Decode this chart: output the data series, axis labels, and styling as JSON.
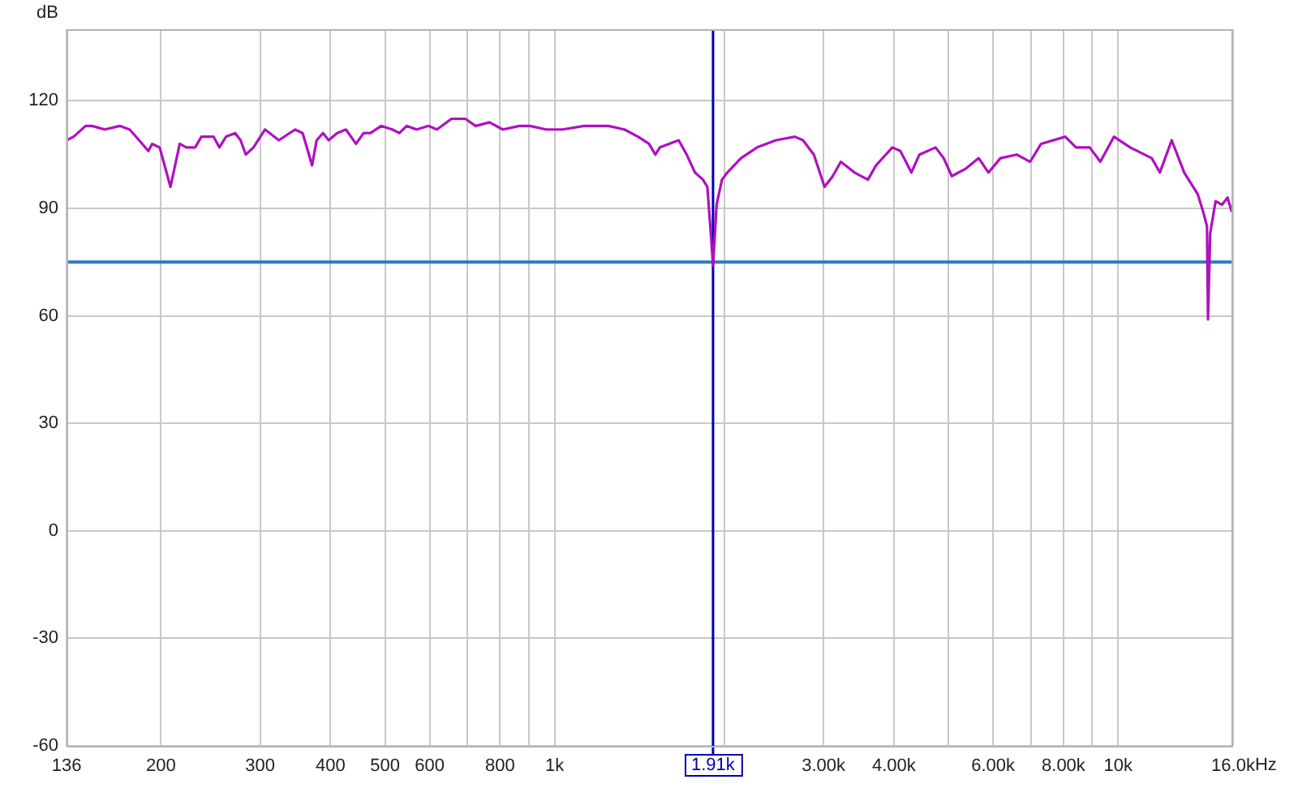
{
  "chart_data": {
    "type": "line",
    "xlabel": "Hz",
    "ylabel": "dB",
    "log": "x",
    "grid": true,
    "x": [
      136,
      140,
      147,
      151,
      159,
      169,
      176,
      183,
      190,
      193,
      199,
      208,
      216,
      222,
      230,
      236,
      243,
      248,
      254,
      261,
      271,
      277,
      283,
      292,
      306,
      324,
      346,
      357,
      371,
      378,
      388,
      397,
      411,
      426,
      444,
      458,
      471,
      492,
      515,
      530,
      546,
      569,
      597,
      618,
      656,
      694,
      724,
      766,
      809,
      865,
      904,
      966,
      1032,
      1127,
      1245,
      1330,
      1406,
      1470,
      1509,
      1537,
      1660,
      1715,
      1774,
      1833,
      1866,
      1895,
      1910,
      1938,
      1981,
      2025,
      2141,
      2287,
      2470,
      2669,
      2759,
      2884,
      3013,
      3115,
      3220,
      3405,
      3597,
      3718,
      3974,
      4107,
      4296,
      4440,
      4743,
      4903,
      5068,
      5355,
      5657,
      5888,
      6183,
      6607,
      6981,
      7299,
      8058,
      8421,
      8903,
      9301,
      9833,
      10508,
      11475,
      11862,
      12449,
      13102,
      13843,
      14160,
      14380,
      14440,
      14570,
      14893,
      15293,
      15640,
      15913
    ],
    "series": [
      {
        "color": "#b010c0",
        "values": [
          109,
          110,
          113,
          113,
          112,
          113,
          112,
          109,
          106,
          108,
          107,
          96,
          108,
          107,
          107,
          110,
          110,
          110,
          107,
          110,
          111,
          109,
          105,
          107,
          112,
          109,
          112,
          111,
          102,
          109,
          111,
          109,
          111,
          112,
          108,
          111,
          111,
          113,
          112,
          111,
          113,
          112,
          113,
          112,
          115,
          115,
          113,
          114,
          112,
          113,
          113,
          112,
          112,
          113,
          113,
          112,
          110,
          108,
          105,
          107,
          109,
          105,
          100,
          98,
          96,
          82,
          74,
          91,
          98,
          100,
          104,
          107,
          109,
          110,
          109,
          105,
          96,
          99,
          103,
          100,
          98,
          102,
          107,
          106,
          100,
          105,
          107,
          104,
          99,
          101,
          104,
          100,
          104,
          105,
          103,
          108,
          110,
          107,
          107,
          103,
          110,
          107,
          104,
          100,
          109,
          100,
          94,
          89,
          85,
          59,
          83,
          92,
          91,
          93,
          89
        ]
      }
    ],
    "xlim": [
      136,
      16000
    ],
    "xticks": [
      136,
      200,
      300,
      400,
      500,
      600,
      {
        "value": 700,
        "label": null
      },
      800,
      {
        "value": 900,
        "label": null
      },
      {
        "value": 1000,
        "label": "1k"
      },
      {
        "value": 2000,
        "label": null
      },
      {
        "value": 3000,
        "label": "3.00k"
      },
      {
        "value": 4000,
        "label": "4.00k"
      },
      {
        "value": 5000,
        "label": null
      },
      {
        "value": 6000,
        "label": "6.00k"
      },
      {
        "value": 7000,
        "label": null
      },
      {
        "value": 8000,
        "label": "8.00k"
      },
      {
        "value": 9000,
        "label": null
      },
      {
        "value": 10000,
        "label": "10k"
      },
      {
        "value": 16000,
        "label": "16.0k"
      }
    ],
    "ylim": [
      -60,
      140
    ],
    "yticks": [
      -60,
      -30,
      0,
      30,
      60,
      90,
      120
    ],
    "ref_lines": [
      {
        "axis": "y",
        "value": 75,
        "color": "#2f78c4"
      },
      {
        "axis": "x",
        "value": 1910,
        "label": "1.91k",
        "color": "#0000b4"
      }
    ]
  }
}
